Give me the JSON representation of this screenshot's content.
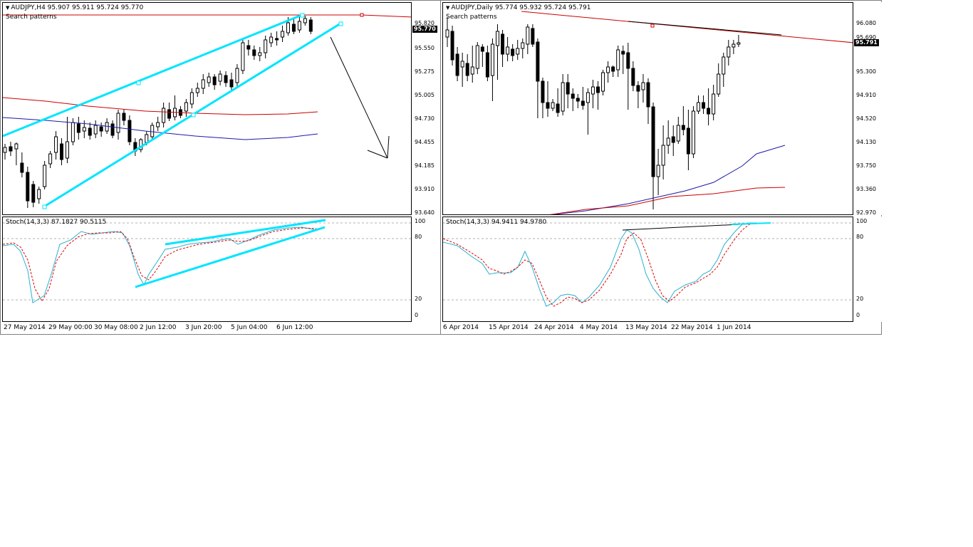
{
  "colors": {
    "background": "#ffffff",
    "bull_candle": "#ffffff",
    "bear_candle": "#000000",
    "trendline": "#00e5ff",
    "ma_red": "#cc0000",
    "ma_blue": "#1a1aa6",
    "stoch_main": "#2ab0d0",
    "stoch_signal": "#e00000",
    "level": "#b0b0b0"
  },
  "left_chart": {
    "title": "AUDJPY,H4  95.907 95.911 95.724 95.770",
    "subtitle": "Search patterns",
    "menu_icon": "triangle-down-icon",
    "price_labels": [
      "95.820",
      "95.550",
      "95.275",
      "95.005",
      "94.730",
      "94.455",
      "94.185",
      "93.910",
      "93.640"
    ],
    "current_price": "95.770",
    "indicator_title": "Stoch(14,3,3) 87.1827 90.5115",
    "stoch_levels": [
      "100",
      "80",
      "20",
      "0"
    ],
    "time_labels": [
      "27 May 2014",
      "29 May 00:00",
      "30 May 08:00",
      "2 Jun 12:00",
      "3 Jun 20:00",
      "5 Jun 04:00",
      "6 Jun 12:00"
    ]
  },
  "right_chart": {
    "title": "AUDJPY,Daily  95.774 95.932 95.724 95.791",
    "subtitle": "Search patterns",
    "menu_icon": "triangle-down-icon",
    "price_labels": [
      "96.080",
      "95.690",
      "95.300",
      "94.910",
      "94.520",
      "94.130",
      "93.750",
      "93.360",
      "92.970"
    ],
    "current_price": "95.791",
    "indicator_title": "Stoch(14,3,3) 94.9411 94.9780",
    "stoch_levels": [
      "100",
      "80",
      "20",
      "0"
    ],
    "time_labels": [
      "6 Apr 2014",
      "15 Apr 2014",
      "24 Apr 2014",
      "4 May 2014",
      "13 May 2014",
      "22 May 2014",
      "1 Jun 2014"
    ]
  }
}
